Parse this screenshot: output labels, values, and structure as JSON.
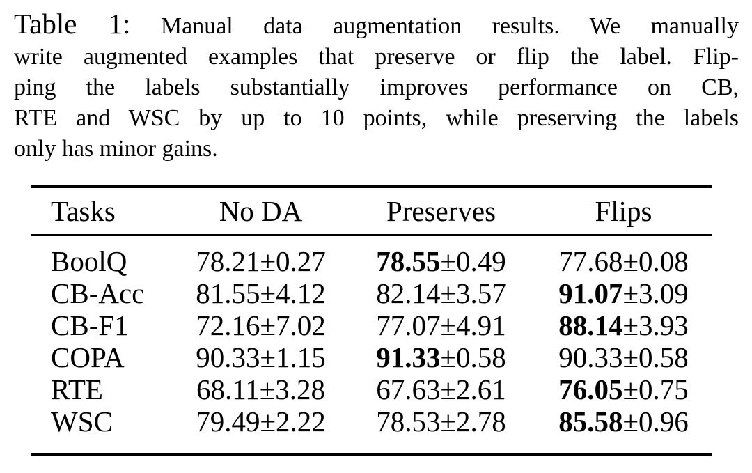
{
  "caption": {
    "label": "Table 1:",
    "lines": [
      "Manual data augmentation results.  We manually",
      "write augmented examples that preserve or flip the label. Flip-",
      "ping the labels substantially improves performance on CB,",
      "RTE and WSC by up to 10 points, while preserving the labels",
      "only has minor gains."
    ]
  },
  "table": {
    "pm": "±",
    "headers": [
      "Tasks",
      "No DA",
      "Preserves",
      "Flips"
    ],
    "rows": [
      {
        "task": "BoolQ",
        "no_da": {
          "mean": "78.21",
          "std": "0.27",
          "bold": false
        },
        "preserves": {
          "mean": "78.55",
          "std": "0.49",
          "bold": true
        },
        "flips": {
          "mean": "77.68",
          "std": "0.08",
          "bold": false
        }
      },
      {
        "task": "CB-Acc",
        "no_da": {
          "mean": "81.55",
          "std": "4.12",
          "bold": false
        },
        "preserves": {
          "mean": "82.14",
          "std": "3.57",
          "bold": false
        },
        "flips": {
          "mean": "91.07",
          "std": "3.09",
          "bold": true
        }
      },
      {
        "task": "CB-F1",
        "no_da": {
          "mean": "72.16",
          "std": "7.02",
          "bold": false
        },
        "preserves": {
          "mean": "77.07",
          "std": "4.91",
          "bold": false
        },
        "flips": {
          "mean": "88.14",
          "std": "3.93",
          "bold": true
        }
      },
      {
        "task": "COPA",
        "no_da": {
          "mean": "90.33",
          "std": "1.15",
          "bold": false
        },
        "preserves": {
          "mean": "91.33",
          "std": "0.58",
          "bold": true
        },
        "flips": {
          "mean": "90.33",
          "std": "0.58",
          "bold": false
        }
      },
      {
        "task": "RTE",
        "no_da": {
          "mean": "68.11",
          "std": "3.28",
          "bold": false
        },
        "preserves": {
          "mean": "67.63",
          "std": "2.61",
          "bold": false
        },
        "flips": {
          "mean": "76.05",
          "std": "0.75",
          "bold": true
        }
      },
      {
        "task": "WSC",
        "no_da": {
          "mean": "79.49",
          "std": "2.22",
          "bold": false
        },
        "preserves": {
          "mean": "78.53",
          "std": "2.78",
          "bold": false
        },
        "flips": {
          "mean": "85.58",
          "std": "0.96",
          "bold": true
        }
      }
    ]
  },
  "chart_data": {
    "type": "table",
    "title": "Table 1: Manual data augmentation results.",
    "columns": [
      "Tasks",
      "No DA",
      "Preserves",
      "Flips"
    ],
    "rows": [
      [
        "BoolQ",
        "78.21±0.27",
        "78.55±0.49",
        "77.68±0.08"
      ],
      [
        "CB-Acc",
        "81.55±4.12",
        "82.14±3.57",
        "91.07±3.09"
      ],
      [
        "CB-F1",
        "72.16±7.02",
        "77.07±4.91",
        "88.14±3.93"
      ],
      [
        "COPA",
        "90.33±1.15",
        "91.33±0.58",
        "90.33±0.58"
      ],
      [
        "RTE",
        "68.11±3.28",
        "67.63±2.61",
        "76.05±0.75"
      ],
      [
        "WSC",
        "79.49±2.22",
        "78.53±2.78",
        "85.58±0.96"
      ]
    ],
    "bold_means": {
      "BoolQ": "Preserves",
      "CB-Acc": "Flips",
      "CB-F1": "Flips",
      "COPA": "Preserves",
      "RTE": "Flips",
      "WSC": "Flips"
    }
  }
}
